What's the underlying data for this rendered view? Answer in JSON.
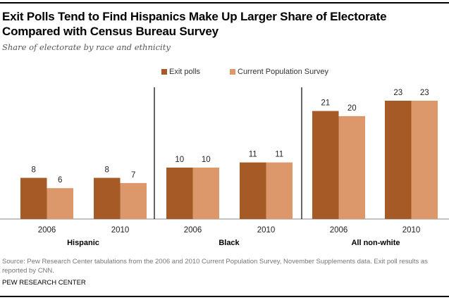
{
  "header": {
    "title": "Exit Polls Tend to Find Hispanics Make Up Larger Share of Electorate Compared with Census Bureau Survey",
    "subtitle": "Share of electorate by race and ethnicity"
  },
  "footer": {
    "source": "Source:  Pew Research Center tabulations from the 2006 and 2010 Current Population Survey, November Supplements data. Exit poll results as reported by CNN.",
    "org": "PEW RESEARCH CENTER"
  },
  "chart_data": {
    "type": "bar",
    "title": "Exit Polls Tend to Find Hispanics Make Up Larger Share of Electorate Compared with Census Bureau Survey",
    "subtitle": "Share of electorate by race and ethnicity",
    "xlabel": "",
    "ylabel": "",
    "ylim": [
      0,
      25
    ],
    "grid": false,
    "legend_position": "top-center",
    "groups": [
      "Hispanic",
      "Black",
      "All non-white"
    ],
    "categories": [
      "2006",
      "2010"
    ],
    "series": [
      {
        "name": "Exit polls",
        "color": "#a65a26",
        "values": [
          [
            8,
            8
          ],
          [
            10,
            11
          ],
          [
            21,
            23
          ]
        ]
      },
      {
        "name": "Current Population Survey",
        "color": "#dc976a",
        "values": [
          [
            6,
            7
          ],
          [
            10,
            11
          ],
          [
            20,
            23
          ]
        ]
      }
    ]
  }
}
